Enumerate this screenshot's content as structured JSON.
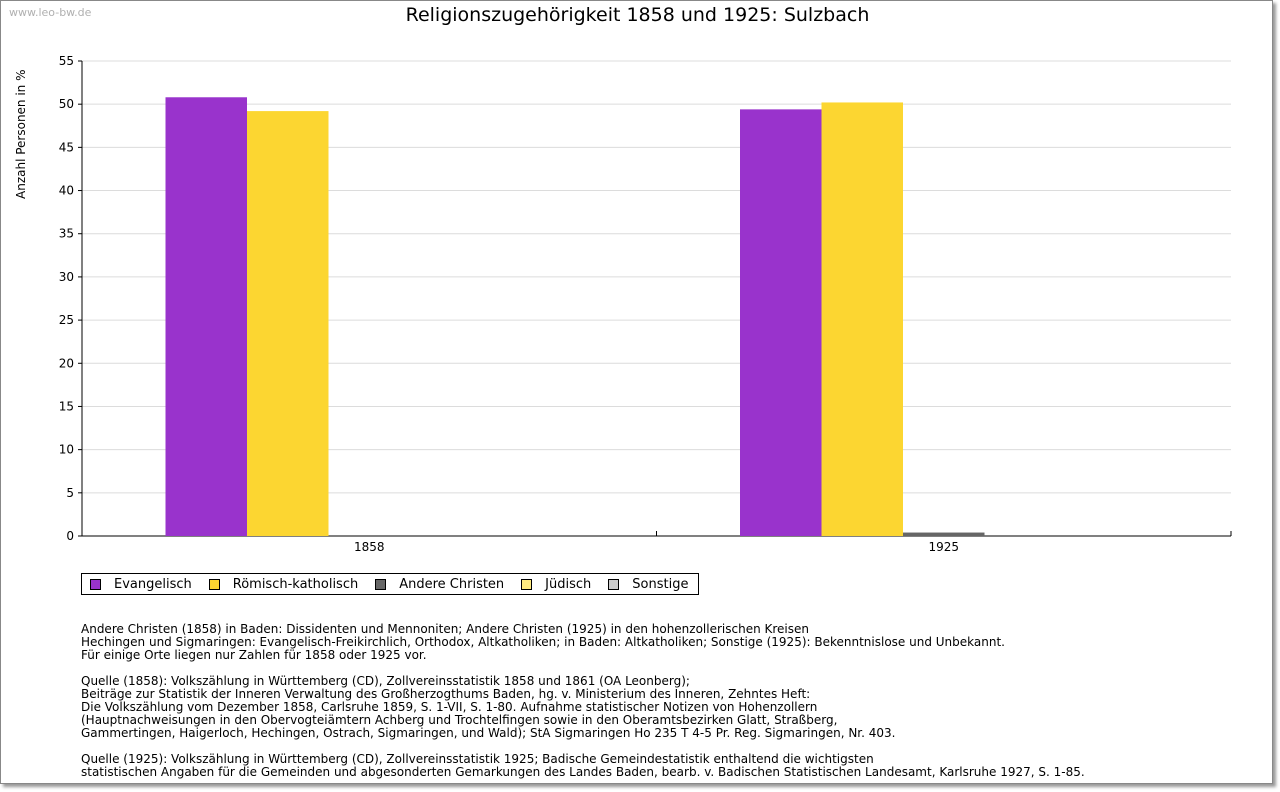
{
  "watermark": "www.leo-bw.de",
  "chart_data": {
    "type": "bar",
    "title": "Religionszugehörigkeit 1858 und 1925: Sulzbach",
    "xlabel": "",
    "ylabel": "Anzahl Personen in %",
    "ylim": [
      0,
      55
    ],
    "yticks": [
      0,
      5,
      10,
      15,
      20,
      25,
      30,
      35,
      40,
      45,
      50,
      55
    ],
    "categories": [
      "1858",
      "1925"
    ],
    "series": [
      {
        "name": "Evangelisch",
        "color": "#9933cc",
        "values": [
          50.8,
          49.4
        ]
      },
      {
        "name": "Römisch-katholisch",
        "color": "#fcd631",
        "values": [
          49.2,
          50.2
        ]
      },
      {
        "name": "Andere Christen",
        "color": "#666666",
        "values": [
          0,
          0.4
        ]
      },
      {
        "name": "Jüdisch",
        "color": "#ffeb80",
        "values": [
          0,
          0
        ]
      },
      {
        "name": "Sonstige",
        "color": "#cccccc",
        "values": [
          0,
          0
        ]
      }
    ],
    "grid": true,
    "legend_position": "bottom-left"
  },
  "notes": {
    "paragraph1": [
      "Andere Christen (1858) in Baden: Dissidenten und Mennoniten; Andere Christen (1925) in den hohenzollerischen Kreisen",
      "Hechingen und Sigmaringen: Evangelisch-Freikirchlich, Orthodox, Altkatholiken; in Baden: Altkatholiken; Sonstige (1925): Bekenntnislose und Unbekannt.",
      "Für einige Orte liegen nur Zahlen für 1858 oder 1925 vor."
    ],
    "paragraph2": [
      "Quelle (1858): Volkszählung in Württemberg (CD), Zollvereinsstatistik 1858 und 1861 (OA Leonberg);",
      "Beiträge zur Statistik der Inneren Verwaltung des Großherzogthums Baden, hg. v. Ministerium des Inneren, Zehntes Heft:",
      "Die Volkszählung vom Dezember 1858, Carlsruhe 1859, S. 1-VII, S. 1-80. Aufnahme statistischer Notizen von Hohenzollern",
      "(Hauptnachweisungen in den Obervogteiämtern Achberg und Trochtelfingen sowie in den Oberamtsbezirken Glatt, Straßberg,",
      "Gammertingen, Haigerloch, Hechingen, Ostrach, Sigmaringen, und Wald); StA Sigmaringen Ho 235 T 4-5 Pr. Reg. Sigmaringen, Nr. 403."
    ],
    "paragraph3": [
      "Quelle (1925): Volkszählung in Württemberg (CD), Zollvereinsstatistik 1925; Badische Gemeindestatistik enthaltend die wichtigsten",
      "statistischen Angaben für die Gemeinden und abgesonderten Gemarkungen des Landes Baden, bearb. v. Badischen Statistischen Landesamt, Karlsruhe 1927, S. 1-85."
    ]
  }
}
